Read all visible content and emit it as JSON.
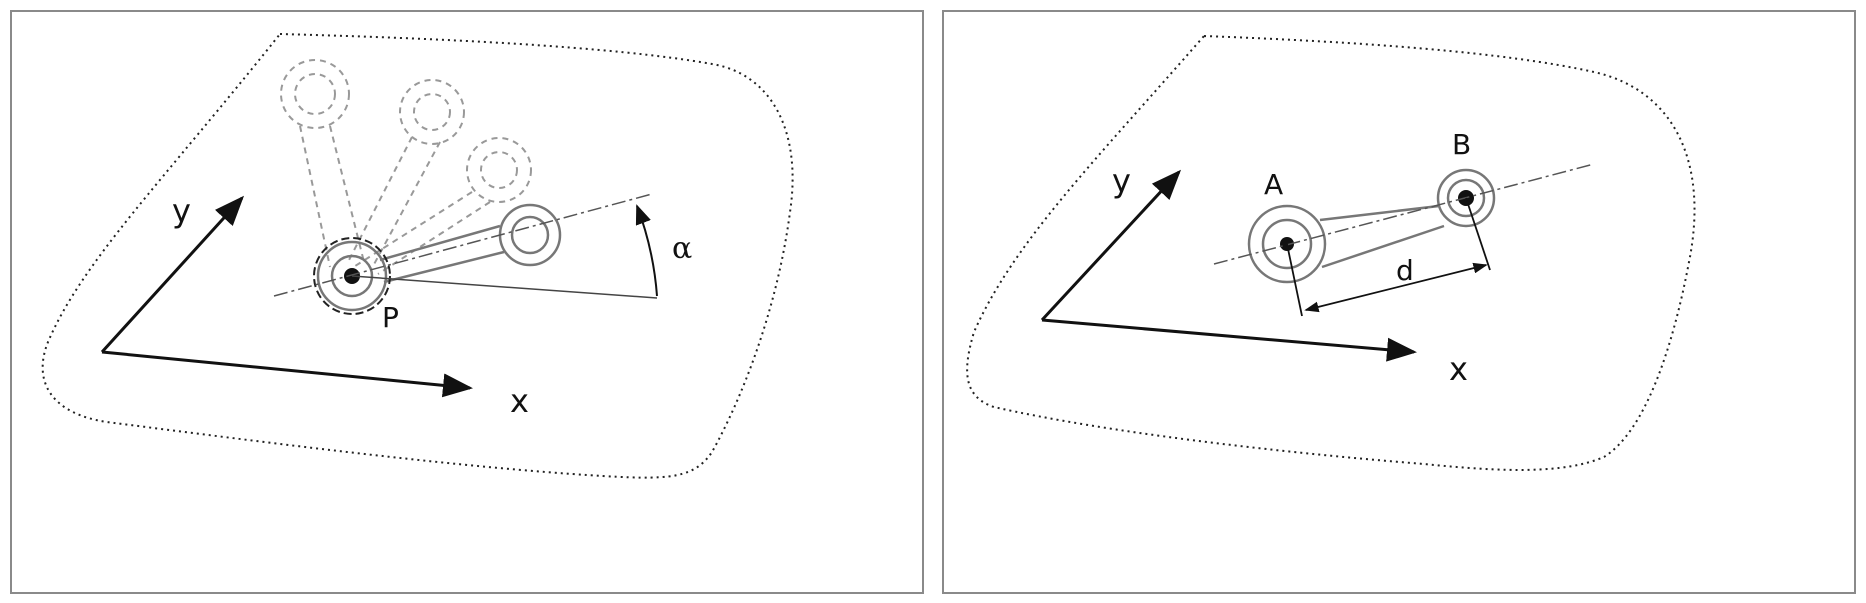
{
  "left_panel": {
    "axis_x_label": "x",
    "axis_y_label": "y",
    "pivot_label": "P",
    "angle_label": "α"
  },
  "right_panel": {
    "axis_x_label": "x",
    "axis_y_label": "y",
    "point_a_label": "A",
    "point_b_label": "B",
    "distance_label": "d"
  },
  "colors": {
    "ink": "#111111",
    "part_outline": "#777777",
    "ghost": "#999999",
    "frame": "#8a8a8a"
  }
}
